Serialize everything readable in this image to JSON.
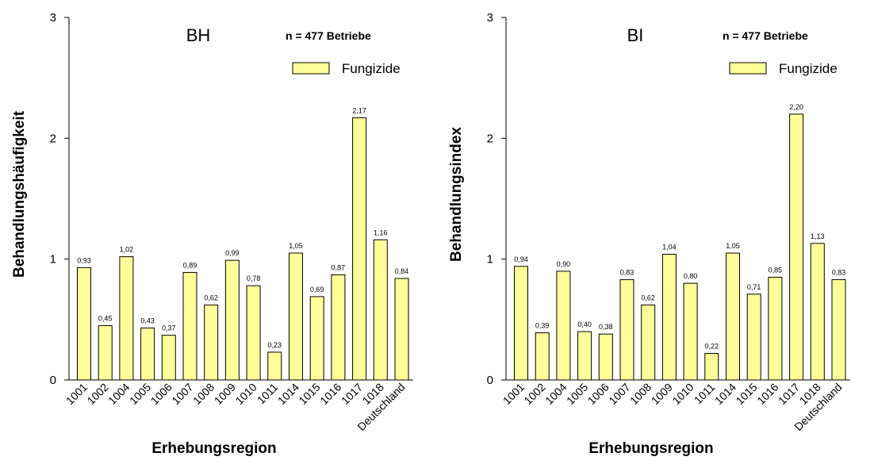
{
  "colors": {
    "bar_fill": "#ffff99",
    "bar_stroke": "#000000",
    "axis": "#000000"
  },
  "chart_data": [
    {
      "type": "bar",
      "title": "BH",
      "annotation": "n = 477 Betriebe",
      "legend": [
        "Fungizide"
      ],
      "legend_position": "top-right",
      "xlabel": "Erhebungsregion",
      "ylabel": "Behandlungshäufigkeit",
      "ylim": [
        0,
        3
      ],
      "yticks": [
        "0",
        "1",
        "2",
        "3"
      ],
      "grid": false,
      "categories": [
        "1001",
        "1002",
        "1004",
        "1005",
        "1006",
        "1007",
        "1008",
        "1009",
        "1010",
        "1011",
        "1014",
        "1015",
        "1016",
        "1017",
        "1018",
        "Deutschland"
      ],
      "series": [
        {
          "name": "Fungizide",
          "values": [
            0.93,
            0.45,
            1.02,
            0.43,
            0.37,
            0.89,
            0.62,
            0.99,
            0.78,
            0.23,
            1.05,
            0.69,
            0.87,
            2.17,
            1.16,
            0.84
          ],
          "labels": [
            "0,93",
            "0,45",
            "1,02",
            "0,43",
            "0,37",
            "0,89",
            "0,62",
            "0,99",
            "0,78",
            "0,23",
            "1,05",
            "0,69",
            "0,87",
            "2,17",
            "1,16",
            "0,84"
          ]
        }
      ]
    },
    {
      "type": "bar",
      "title": "BI",
      "annotation": "n = 477 Betriebe",
      "legend": [
        "Fungizide"
      ],
      "legend_position": "top-right",
      "xlabel": "Erhebungsregion",
      "ylabel": "Behandlungsindex",
      "ylim": [
        0,
        3
      ],
      "yticks": [
        "0",
        "1",
        "2",
        "3"
      ],
      "grid": false,
      "categories": [
        "1001",
        "1002",
        "1004",
        "1005",
        "1006",
        "1007",
        "1008",
        "1009",
        "1010",
        "1011",
        "1014",
        "1015",
        "1016",
        "1017",
        "1018",
        "Deutschland"
      ],
      "series": [
        {
          "name": "Fungizide",
          "values": [
            0.94,
            0.39,
            0.9,
            0.4,
            0.38,
            0.83,
            0.62,
            1.04,
            0.8,
            0.22,
            1.05,
            0.71,
            0.85,
            2.2,
            1.13,
            0.83
          ],
          "labels": [
            "0,94",
            "0,39",
            "0,90",
            "0,40",
            "0,38",
            "0,83",
            "0,62",
            "1,04",
            "0,80",
            "0,22",
            "1,05",
            "0,71",
            "0,85",
            "2,20",
            "1,13",
            "0,83"
          ]
        }
      ]
    }
  ]
}
